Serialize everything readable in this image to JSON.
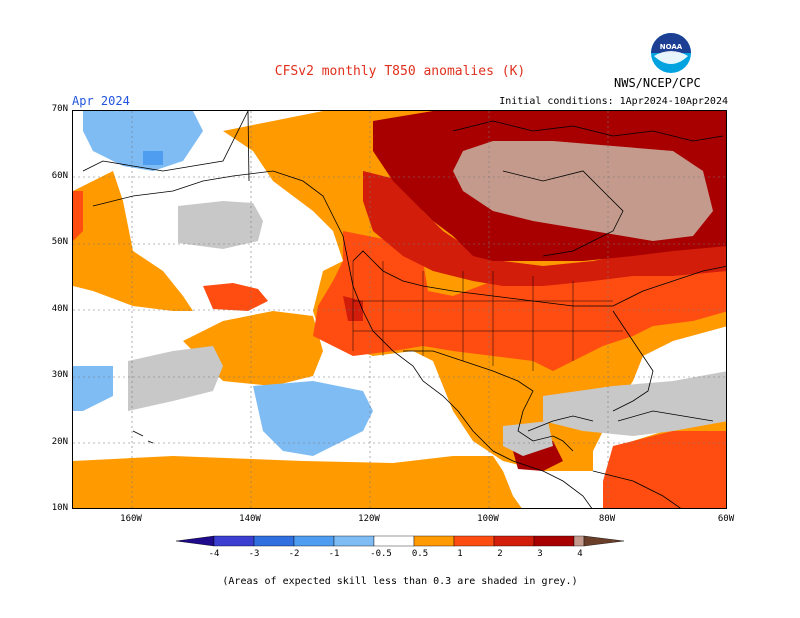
{
  "header": {
    "title": "CFSv2 monthly T850 anomalies (K)",
    "agency": "NWS/NCEP/CPC",
    "logo_text": "NOAA",
    "month": "Apr 2024",
    "initial_conditions": "Initial conditions: 1Apr2024-10Apr2024"
  },
  "axes": {
    "lat_labels": [
      "70N",
      "60N",
      "50N",
      "40N",
      "30N",
      "20N",
      "10N"
    ],
    "lon_labels": [
      "160W",
      "140W",
      "120W",
      "100W",
      "80W",
      "60W"
    ]
  },
  "colorbar": {
    "labels": [
      "-4",
      "-3",
      "-2",
      "-1",
      "-0.5",
      "0.5",
      "1",
      "2",
      "3",
      "4"
    ],
    "colors": {
      "lt_neg4": "#1f0a8c",
      "neg4_neg3": "#3a3fd1",
      "neg3_neg2": "#2f6fe0",
      "neg2_neg1": "#4f9df0",
      "neg1_neg05": "#7fbcf4",
      "neutral": "#ffffff",
      "p05_1": "#ff9a00",
      "p1_2": "#ff4d12",
      "p2_3": "#d21d0a",
      "p3_4": "#a80000",
      "p4_plus": "#c49a8c",
      "gt_4": "#6b3e2a",
      "grey_low_skill": "#c8c8c8"
    }
  },
  "footnote": "(Areas of expected skill less than 0.3 are shaded in grey.)"
}
